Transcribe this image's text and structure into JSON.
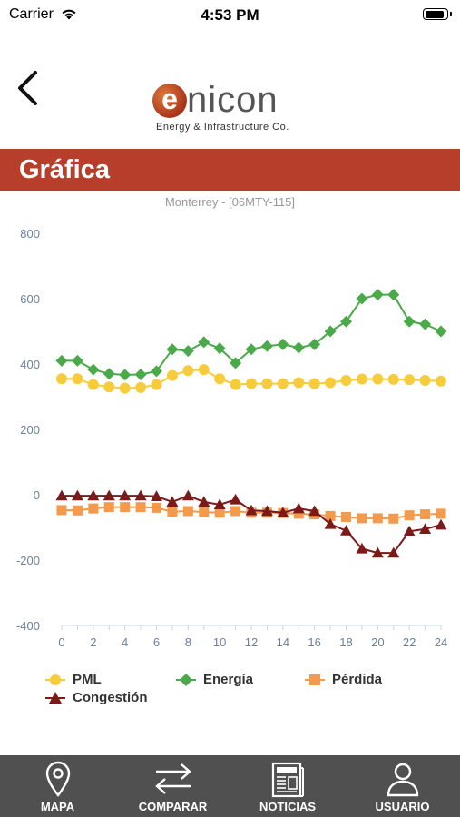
{
  "status_bar": {
    "carrier": "Carrier",
    "time": "4:53 PM",
    "battery_level": 0.95
  },
  "header": {
    "logo_letter": "e",
    "logo_rest": "nicon",
    "logo_tagline": "Energy & Infrastructure Co."
  },
  "page": {
    "title": "Gráfica"
  },
  "chart_data": {
    "type": "line",
    "subtitle": "Monterrey - [06MTY-115]",
    "x": [
      0,
      1,
      2,
      3,
      4,
      5,
      6,
      7,
      8,
      9,
      10,
      11,
      12,
      13,
      14,
      15,
      16,
      17,
      18,
      19,
      20,
      21,
      22,
      23,
      24
    ],
    "x_ticks": [
      "0",
      "2",
      "4",
      "6",
      "8",
      "10",
      "12",
      "14",
      "16",
      "18",
      "20",
      "22",
      "24"
    ],
    "y_ticks": [
      "-400",
      "-200",
      "0",
      "200",
      "400",
      "600",
      "800"
    ],
    "xlim": [
      0,
      24
    ],
    "ylim": [
      -400,
      800
    ],
    "grid": false,
    "legend_position": "bottom",
    "series": [
      {
        "name": "PML",
        "color": "#f6cc3c",
        "marker": "circle",
        "values": [
          355,
          355,
          337,
          330,
          326,
          328,
          337,
          365,
          380,
          383,
          355,
          337,
          340,
          340,
          340,
          343,
          340,
          343,
          350,
          354,
          354,
          353,
          352,
          350,
          348
        ]
      },
      {
        "name": "Energía",
        "color": "#4aaa4a",
        "marker": "diamond",
        "values": [
          410,
          410,
          383,
          370,
          367,
          368,
          378,
          445,
          440,
          467,
          448,
          403,
          445,
          455,
          460,
          450,
          460,
          500,
          530,
          600,
          612,
          612,
          530,
          522,
          500
        ]
      },
      {
        "name": "Pérdida",
        "color": "#f39a4c",
        "marker": "square",
        "values": [
          -47,
          -48,
          -42,
          -38,
          -38,
          -38,
          -40,
          -52,
          -50,
          -53,
          -55,
          -50,
          -55,
          -55,
          -56,
          -58,
          -60,
          -65,
          -68,
          -72,
          -72,
          -73,
          -63,
          -60,
          -58
        ]
      },
      {
        "name": "Congestión",
        "color": "#7c1a1a",
        "marker": "triangle",
        "values": [
          -3,
          -3,
          -3,
          -3,
          -3,
          -3,
          -5,
          -22,
          -3,
          -22,
          -30,
          -15,
          -48,
          -50,
          -55,
          -42,
          -50,
          -90,
          -110,
          -165,
          -178,
          -178,
          -112,
          -105,
          -92
        ]
      }
    ]
  },
  "tab_bar": {
    "items": [
      {
        "label": "MAPA",
        "icon": "map-pin-icon"
      },
      {
        "label": "COMPARAR",
        "icon": "compare-arrows-icon"
      },
      {
        "label": "NOTICIAS",
        "icon": "newspaper-icon"
      },
      {
        "label": "USUARIO",
        "icon": "user-icon"
      }
    ]
  }
}
